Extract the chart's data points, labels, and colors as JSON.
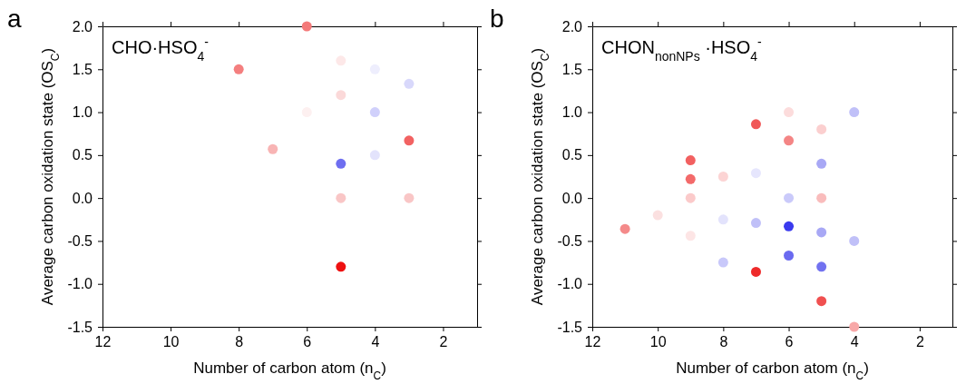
{
  "chart_data": [
    {
      "type": "scatter",
      "title": "CHO·HSO$_{4}$$^{-}$",
      "xlabel": "Number of carbon atom (n$_{C}$)",
      "ylabel": "Average carbon oxidation state (OS$_{C}$)",
      "annotations": [
        "a"
      ],
      "xlim": [
        12,
        1
      ],
      "ylim": [
        -1.5,
        2
      ],
      "xticks": [
        12,
        10,
        8,
        6,
        4,
        2
      ],
      "yticks": [
        {
          "value": -1.5,
          "label": "-1.5"
        },
        {
          "value": -1,
          "label": "-1.0"
        },
        {
          "value": -0.5,
          "label": "-0.5"
        },
        {
          "value": 0,
          "label": "0.0"
        },
        {
          "value": 0.5,
          "label": "0.5"
        },
        {
          "value": 1,
          "label": "1.0"
        },
        {
          "value": 1.5,
          "label": "1.5"
        },
        {
          "value": 2,
          "label": "2.0"
        }
      ],
      "grid": false,
      "marker": "circle",
      "x": [
        6,
        8,
        5,
        4,
        3,
        5,
        6,
        4,
        7,
        3,
        4,
        5,
        5,
        3,
        5
      ],
      "values": [
        2.0,
        1.5,
        1.6,
        1.5,
        1.33,
        1.2,
        1.0,
        1.0,
        0.57,
        0.67,
        0.5,
        0.4,
        0,
        0,
        -0.8
      ],
      "colors": [
        "#f47a7a",
        "#f47f7f",
        "#fde8e8",
        "#eeeefd",
        "#d8d8fb",
        "#fbd9d9",
        "#fdf0f0",
        "#d0d0fb",
        "#f8b4b4",
        "#f26262",
        "#e3e3fc",
        "#6e6ef0",
        "#f9c6c6",
        "#f9c6c6",
        "#ee1111"
      ]
    },
    {
      "type": "scatter",
      "title": "CHON$_{nonNPs}$ ·HSO$_{4}$$^{-}$",
      "xlabel": "Number of carbon atom (n$_{C}$)",
      "ylabel": "Average carbon oxidation state (OS$_{C}$)",
      "annotations": [
        "b"
      ],
      "xlim": [
        12,
        1
      ],
      "ylim": [
        -1.5,
        2
      ],
      "xticks": [
        12,
        10,
        8,
        6,
        4,
        2
      ],
      "yticks": [
        {
          "value": -1.5,
          "label": "-1.5"
        },
        {
          "value": -1,
          "label": "-1.0"
        },
        {
          "value": -0.5,
          "label": "-0.5"
        },
        {
          "value": 0,
          "label": "0.0"
        },
        {
          "value": 0.5,
          "label": "0.5"
        },
        {
          "value": 1,
          "label": "1.0"
        },
        {
          "value": 1.5,
          "label": "1.5"
        },
        {
          "value": 2,
          "label": "2.0"
        }
      ],
      "grid": false,
      "marker": "circle",
      "x": [
        11,
        10,
        9,
        9,
        9,
        9,
        8,
        8,
        8,
        7,
        7,
        7,
        7,
        6,
        6,
        6,
        6,
        6,
        5,
        5,
        5,
        5,
        5,
        5,
        4,
        4,
        4
      ],
      "values": [
        -0.36,
        -0.2,
        0.44,
        0.22,
        0,
        -0.44,
        0.25,
        -0.25,
        -0.75,
        0.86,
        0.29,
        -0.29,
        -0.86,
        1.0,
        0.67,
        0,
        -0.33,
        -0.67,
        0.8,
        0.4,
        0,
        -0.4,
        -0.8,
        -1.2,
        1.0,
        -0.5,
        -1.5
      ],
      "colors": [
        "#f48a8a",
        "#fbe0e0",
        "#f26060",
        "#f36a6a",
        "#fbcaca",
        "#fde5e5",
        "#fcd4d4",
        "#e3e3fc",
        "#c8c8fa",
        "#f05858",
        "#e6e6fd",
        "#c0c0f8",
        "#ee2a2a",
        "#fcdcdc",
        "#f48585",
        "#cacafa",
        "#3a3aee",
        "#6a6af0",
        "#fbcfcf",
        "#a8a8f5",
        "#f9bcbc",
        "#a8a8f5",
        "#7272f0",
        "#f05050",
        "#c0c0f8",
        "#c0c0f8",
        "#f8a8a8"
      ]
    }
  ]
}
